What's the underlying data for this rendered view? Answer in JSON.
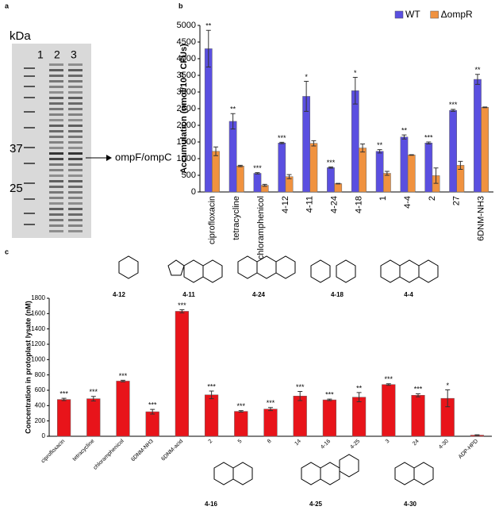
{
  "panels": [
    "a",
    "b",
    "c"
  ],
  "gel": {
    "unit": "kDa",
    "lanes": [
      "1",
      "2",
      "3"
    ],
    "markers": [
      "37",
      "25"
    ],
    "arrow_label": "ompF/ompC"
  },
  "structures": {
    "top": [
      "4-12",
      "4-11",
      "4-24",
      "4-18",
      "4-4"
    ],
    "bottom": [
      "4-16",
      "4-25",
      "4-30"
    ]
  },
  "chart_data": [
    {
      "type": "bar",
      "y_label": "Accumulation (nmol/10¹² CFUs)",
      "categories": [
        "ciprofloxacin",
        "tetracycline",
        "chloramphenicol",
        "4-12",
        "4-11",
        "4-24",
        "4-18",
        "1",
        "4-4",
        "2",
        "27",
        "6DNM-NH3"
      ],
      "series": [
        {
          "name": "WT",
          "color": "#5a4fe0",
          "values": [
            4300,
            2120,
            560,
            1470,
            2870,
            730,
            3040,
            1220,
            1650,
            1470,
            2450,
            3380
          ],
          "errors": [
            550,
            230,
            20,
            20,
            450,
            20,
            400,
            50,
            60,
            30,
            30,
            150
          ]
        },
        {
          "name": "ΔompR",
          "color": "#f0923f",
          "values": [
            1220,
            780,
            200,
            460,
            1460,
            250,
            1320,
            560,
            1110,
            490,
            800,
            2540
          ],
          "errors": [
            130,
            20,
            30,
            60,
            80,
            10,
            120,
            60,
            10,
            230,
            120,
            10
          ]
        }
      ],
      "significance": [
        "**",
        "**",
        "***",
        "***",
        "*",
        "***",
        "*",
        "**",
        "**",
        "***",
        "***",
        "**"
      ],
      "ylim": [
        0,
        5000
      ],
      "yticks": [
        0,
        500,
        1000,
        1500,
        2000,
        2500,
        3000,
        3500,
        4000,
        4500,
        5000
      ],
      "legend": "upper right"
    },
    {
      "type": "bar",
      "y_label": "Concentration in protoplast lysate (nM)",
      "categories": [
        "ciprofloxacin",
        "tetracycline",
        "chloramphenicol",
        "6DNM-NH3",
        "6DNM-acid",
        "2",
        "5",
        "8",
        "14",
        "4-16",
        "4-25",
        "3",
        "24",
        "4-30",
        "ADP-HPD"
      ],
      "color": "#e8141a",
      "values": [
        480,
        490,
        720,
        320,
        1630,
        540,
        325,
        355,
        525,
        475,
        510,
        675,
        535,
        495,
        15
      ],
      "errors": [
        15,
        30,
        10,
        30,
        20,
        50,
        10,
        20,
        60,
        10,
        60,
        10,
        20,
        110,
        5
      ],
      "significance": [
        "***",
        "***",
        "***",
        "***",
        "***",
        "***",
        "***",
        "***",
        "***",
        "***",
        "**",
        "***",
        "***",
        "*",
        null
      ],
      "ylim": [
        0,
        1800
      ],
      "yticks": [
        0,
        200,
        400,
        600,
        800,
        1000,
        1200,
        1400,
        1600,
        1800
      ]
    }
  ]
}
